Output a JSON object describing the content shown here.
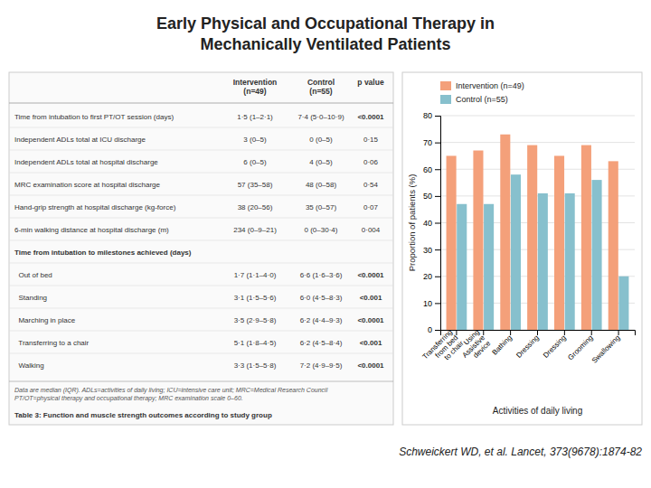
{
  "chart_data": [
    {
      "type": "bar",
      "title": "Early Physical and Occupational Therapy in\nMechanically Ventilated Patients",
      "categories": [
        "Transferring\nfrom bed\nto chair",
        "Using\nAssistive\ndevice",
        "Bathing",
        "Dressing",
        "Dressing",
        "Grooming",
        "Swallowing"
      ],
      "series": [
        {
          "name": "Intervention (n=49)",
          "color": "#f4a07a",
          "values": [
            65,
            67,
            73,
            69,
            65,
            69,
            63
          ]
        },
        {
          "name": "Control (n=55)",
          "color": "#87c0cd",
          "values": [
            47,
            47,
            58,
            51,
            51,
            56,
            20
          ]
        }
      ],
      "xlabel": "Activities of daily living",
      "ylabel": "Proportion of patients (%)",
      "ylim": [
        0,
        80
      ],
      "yticks": [
        0,
        10,
        20,
        30,
        40,
        50,
        60,
        70,
        80
      ],
      "grid": true,
      "legend": "top",
      "annotations": [
        "Schweickert WD, et al. Lancet, 373(9678):1874-82"
      ]
    },
    {
      "type": "table",
      "title": "Table 3: Function and muscle strength outcomes according to study group",
      "columns": [
        "Intervention\n(n=49)",
        "Control\n(n=55)",
        "p value"
      ],
      "rows": [
        [
          "Time from intubation to first PT/OT session (days)",
          "1·5 (1–2·1)",
          "7·4 (5·0–10·9)",
          "<0.0001"
        ],
        [
          "Independent ADLs total at ICU discharge",
          "3 (0–5)",
          "0 (0–5)",
          "0·15"
        ],
        [
          "Independent ADLs total at hospital discharge",
          "6 (0–5)",
          "4 (0–5)",
          "0·06"
        ],
        [
          "MRC examination score at hospital discharge",
          "57 (35–58)",
          "48 (0–58)",
          "0·54"
        ],
        [
          "Hand-grip strength at hospital discharge (kg-force)",
          "38 (20–56)",
          "35 (0–57)",
          "0·07"
        ],
        [
          "6-min walking distance at hospital discharge (m)",
          "234 (0–9–21)",
          "0 (0–30·4)",
          "0·004"
        ],
        [
          "Time from intubation to milestones achieved (days)",
          null,
          null,
          null
        ],
        [
          "  Out of bed",
          "1·7 (1·1–4·0)",
          "6·6 (1·6–3·6)",
          "<0.0001"
        ],
        [
          "  Standing",
          "3·1 (1·5–5·6)",
          "6·0 (4·5–8·3)",
          "<0.001"
        ],
        [
          "  Marching in place",
          "3·5 (2·9–5·8)",
          "6·2 (4·4–9·3)",
          "<0.0001"
        ],
        [
          "  Transferring to a chair",
          "5·1 (1·8–4·5)",
          "6·2 (4·5–8·4)",
          "<0.001"
        ],
        [
          "  Walking",
          "3·3 (1·5–5·8)",
          "7·2 (4·9–9·5)",
          "<0.0001"
        ]
      ],
      "annotations": [
        "Data are median (IQR). ADLs=activities of daily living; ICU=intensive care unit; MRC=Medical Research Council\nPT/OT=physical therapy and occupational therapy; MRC examination scale 0–60."
      ]
    }
  ]
}
